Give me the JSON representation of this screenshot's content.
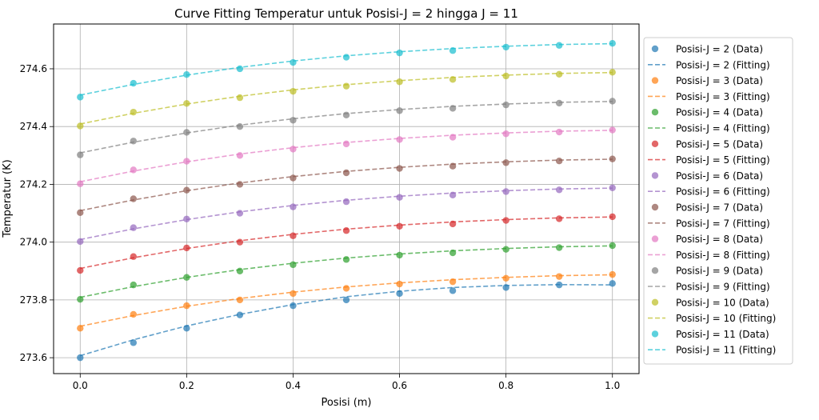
{
  "chart_data": {
    "type": "line",
    "title": "Curve Fitting Temperatur untuk Posisi-J = 2 hingga J = 11",
    "xlabel": "Posisi (m)",
    "ylabel": "Temperatur (K)",
    "xlim": [
      -0.05,
      1.05
    ],
    "ylim": [
      273.545,
      274.755
    ],
    "xticks": [
      0.0,
      0.2,
      0.4,
      0.6,
      0.8,
      1.0
    ],
    "xtick_labels": [
      "0.0",
      "0.2",
      "0.4",
      "0.6",
      "0.8",
      "1.0"
    ],
    "yticks": [
      273.6,
      273.8,
      274.0,
      274.2,
      274.4,
      274.6
    ],
    "ytick_labels": [
      "273.6",
      "273.8",
      "274.0",
      "274.2",
      "274.4",
      "274.6"
    ],
    "grid": true,
    "legend_position": "right",
    "x": [
      0.0,
      0.1,
      0.2,
      0.3,
      0.4,
      0.5,
      0.6,
      0.7,
      0.8,
      0.9,
      1.0
    ],
    "series": [
      {
        "name": "Posisi-J = 2",
        "data_label": "Posisi-J = 2 (Data)",
        "fit_label": "Posisi-J = 2 (Fitting)",
        "color": "#1f77b4",
        "values": [
          273.6,
          273.652,
          273.702,
          273.748,
          273.78,
          273.8,
          273.822,
          273.832,
          273.843,
          273.852,
          273.857
        ],
        "fit": [
          273.607,
          273.662,
          273.71,
          273.75,
          273.784,
          273.811,
          273.83,
          273.843,
          273.85,
          273.853,
          273.852
        ]
      },
      {
        "name": "Posisi-J = 3",
        "data_label": "Posisi-J = 3 (Data)",
        "fit_label": "Posisi-J = 3 (Fitting)",
        "color": "#ff7f0e",
        "values": [
          273.702,
          273.75,
          273.78,
          273.8,
          273.822,
          273.84,
          273.855,
          273.863,
          273.875,
          273.881,
          273.888
        ],
        "fit": [
          273.709,
          273.746,
          273.778,
          273.805,
          273.827,
          273.845,
          273.859,
          273.87,
          273.878,
          273.884,
          273.887
        ]
      },
      {
        "name": "Posisi-J = 4",
        "data_label": "Posisi-J = 4 (Data)",
        "fit_label": "Posisi-J = 4 (Fitting)",
        "color": "#2ca02c",
        "values": [
          273.802,
          273.852,
          273.878,
          273.9,
          273.922,
          273.94,
          273.955,
          273.963,
          273.975,
          273.981,
          273.988
        ],
        "fit": [
          273.809,
          273.846,
          273.878,
          273.905,
          273.927,
          273.945,
          273.959,
          273.97,
          273.978,
          273.984,
          273.987
        ]
      },
      {
        "name": "Posisi-J = 5",
        "data_label": "Posisi-J = 5 (Data)",
        "fit_label": "Posisi-J = 5 (Fitting)",
        "color": "#d62728",
        "values": [
          273.902,
          273.95,
          273.98,
          274.0,
          274.022,
          274.04,
          274.055,
          274.063,
          274.075,
          274.081,
          274.088
        ],
        "fit": [
          273.909,
          273.946,
          273.978,
          274.005,
          274.027,
          274.045,
          274.059,
          274.07,
          274.078,
          274.084,
          274.087
        ]
      },
      {
        "name": "Posisi-J = 6",
        "data_label": "Posisi-J = 6 (Data)",
        "fit_label": "Posisi-J = 6 (Fitting)",
        "color": "#9467bd",
        "values": [
          274.002,
          274.05,
          274.08,
          274.1,
          274.122,
          274.14,
          274.155,
          274.163,
          274.175,
          274.181,
          274.188
        ],
        "fit": [
          274.009,
          274.046,
          274.078,
          274.105,
          274.127,
          274.145,
          274.159,
          274.17,
          274.178,
          274.184,
          274.187
        ]
      },
      {
        "name": "Posisi-J = 7",
        "data_label": "Posisi-J = 7 (Data)",
        "fit_label": "Posisi-J = 7 (Fitting)",
        "color": "#8c564b",
        "values": [
          274.102,
          274.15,
          274.18,
          274.2,
          274.222,
          274.24,
          274.255,
          274.263,
          274.275,
          274.281,
          274.288
        ],
        "fit": [
          274.109,
          274.146,
          274.178,
          274.205,
          274.227,
          274.245,
          274.259,
          274.27,
          274.278,
          274.284,
          274.287
        ]
      },
      {
        "name": "Posisi-J = 8",
        "data_label": "Posisi-J = 8 (Data)",
        "fit_label": "Posisi-J = 8 (Fitting)",
        "color": "#e377c2",
        "values": [
          274.202,
          274.25,
          274.28,
          274.3,
          274.322,
          274.34,
          274.355,
          274.363,
          274.375,
          274.381,
          274.388
        ],
        "fit": [
          274.209,
          274.246,
          274.278,
          274.305,
          274.327,
          274.345,
          274.359,
          274.37,
          274.378,
          274.384,
          274.387
        ]
      },
      {
        "name": "Posisi-J = 9",
        "data_label": "Posisi-J = 9 (Data)",
        "fit_label": "Posisi-J = 9 (Fitting)",
        "color": "#7f7f7f",
        "values": [
          274.302,
          274.35,
          274.38,
          274.4,
          274.422,
          274.44,
          274.455,
          274.463,
          274.475,
          274.481,
          274.488
        ],
        "fit": [
          274.309,
          274.346,
          274.378,
          274.405,
          274.427,
          274.445,
          274.459,
          274.47,
          274.478,
          274.484,
          274.487
        ]
      },
      {
        "name": "Posisi-J = 10",
        "data_label": "Posisi-J = 10 (Data)",
        "fit_label": "Posisi-J = 10 (Fitting)",
        "color": "#bcbd22",
        "values": [
          274.402,
          274.45,
          274.48,
          274.5,
          274.522,
          274.54,
          274.555,
          274.563,
          274.575,
          274.581,
          274.588
        ],
        "fit": [
          274.409,
          274.446,
          274.478,
          274.505,
          274.527,
          274.545,
          274.559,
          274.57,
          274.578,
          274.584,
          274.587
        ]
      },
      {
        "name": "Posisi-J = 11",
        "data_label": "Posisi-J = 11 (Data)",
        "fit_label": "Posisi-J = 11 (Fitting)",
        "color": "#17becf",
        "values": [
          274.502,
          274.55,
          274.58,
          274.6,
          274.622,
          274.64,
          274.655,
          274.663,
          274.675,
          274.681,
          274.688
        ],
        "fit": [
          274.509,
          274.546,
          274.578,
          274.605,
          274.627,
          274.645,
          274.659,
          274.67,
          274.678,
          274.684,
          274.687
        ]
      }
    ]
  }
}
